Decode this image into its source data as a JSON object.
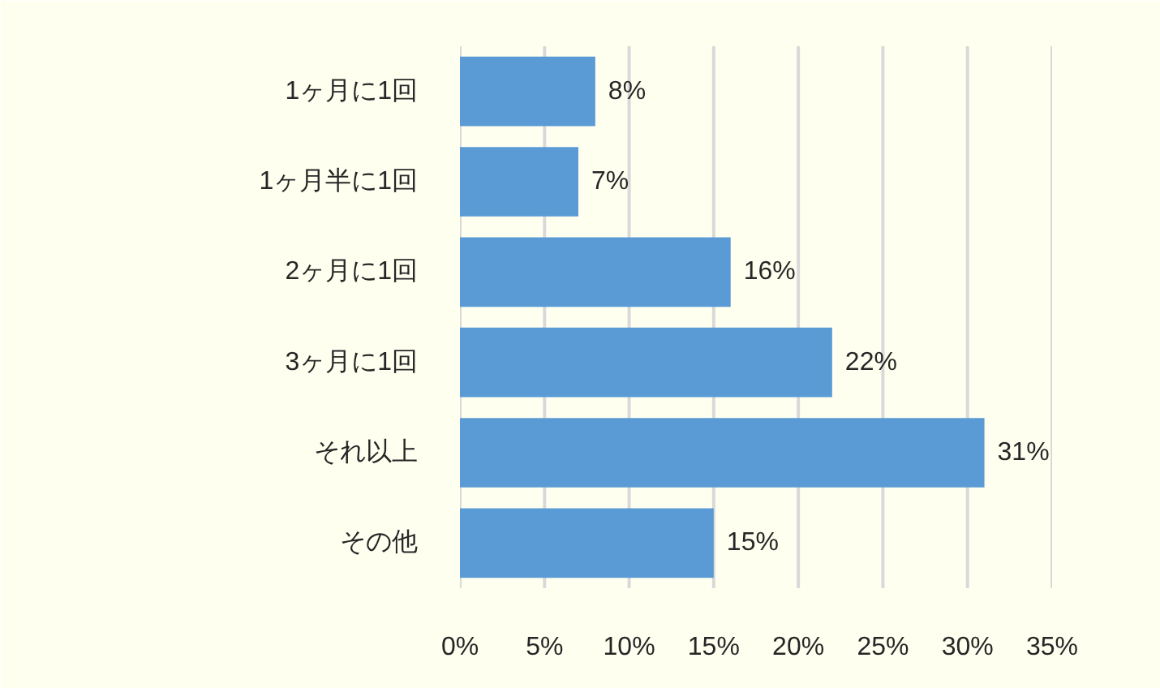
{
  "chart_data": {
    "type": "bar",
    "orientation": "horizontal",
    "categories": [
      "1ヶ月に1回",
      "1ヶ月半に1回",
      "2ヶ月に1回",
      "3ヶ月に1回",
      "それ以上",
      "その他"
    ],
    "values": [
      8,
      7,
      16,
      22,
      31,
      15
    ],
    "color": "#5b9bd5",
    "value_labels": [
      "8%",
      "7%",
      "16%",
      "22%",
      "31%",
      "15%"
    ],
    "xlim": [
      0,
      35
    ],
    "xticks": [
      {
        "value": 0,
        "label": "0%"
      },
      {
        "value": 5,
        "label": "5%"
      },
      {
        "value": 10,
        "label": "10%"
      },
      {
        "value": 15,
        "label": "15%"
      },
      {
        "value": 20,
        "label": "20%"
      },
      {
        "value": 25,
        "label": "25%"
      },
      {
        "value": 30,
        "label": "30%"
      },
      {
        "value": 35,
        "label": "35%"
      }
    ],
    "grid": "x"
  }
}
